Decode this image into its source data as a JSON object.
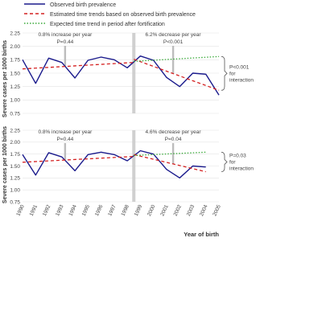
{
  "legend": [
    {
      "label": "Observed birth prevalence",
      "color": "#1a1a8c",
      "style": "solid"
    },
    {
      "label": "Estimated time trends based on observed birth prevalence",
      "color": "#d42020",
      "style": "dashed"
    },
    {
      "label": "Expected time trend in period after fortification",
      "color": "#3aaa3a",
      "style": "dotted"
    }
  ],
  "colors": {
    "observed": "#1a1a8c",
    "trend": "#d42020",
    "expected": "#3aaa3a",
    "divider": "#c8c8c8",
    "annotation_bg": "#d9d9d9",
    "grid": "#e3e3e3"
  },
  "chart_data": [
    {
      "type": "line",
      "ylabel": "Severe cases per 1000 births",
      "xlabel": "",
      "ylim": [
        0.75,
        2.25
      ],
      "yticks": [
        "2.25",
        "2.00",
        "1.75",
        "1.50",
        "1.25",
        "1.00",
        "0.75"
      ],
      "x": [
        1990,
        1991,
        1992,
        1993,
        1994,
        1995,
        1996,
        1997,
        1998,
        1999,
        2000,
        2001,
        2002,
        2003,
        2004,
        2005
      ],
      "divider_x": 1998.5,
      "series": [
        {
          "name": "Observed birth prevalence",
          "kind": "observed",
          "x": [
            1990,
            1991,
            1992,
            1993,
            1994,
            1995,
            1996,
            1997,
            1998,
            1999,
            2000,
            2001,
            2002,
            2003,
            2004,
            2005
          ],
          "values": [
            1.75,
            1.31,
            1.78,
            1.7,
            1.41,
            1.74,
            1.8,
            1.75,
            1.6,
            1.82,
            1.74,
            1.42,
            1.25,
            1.5,
            1.48,
            1.09
          ]
        },
        {
          "name": "Estimated time trends based on observed birth prevalence",
          "kind": "trend",
          "x": [
            1990,
            1998.5
          ],
          "values": [
            1.58,
            1.7
          ]
        },
        {
          "name": "Estimated time trends based on observed birth prevalence",
          "kind": "trend",
          "x": [
            1998.5,
            2005
          ],
          "values": [
            1.76,
            1.18
          ]
        },
        {
          "name": "Expected time trend in period after fortification",
          "kind": "expected",
          "x": [
            1998.5,
            2005
          ],
          "values": [
            1.72,
            1.81
          ]
        }
      ],
      "annotations": [
        {
          "line1": "0.8% increase per year",
          "line2": "P=0.44"
        },
        {
          "line1": "6.2% decrease per year",
          "line2": "P<0.001"
        }
      ],
      "bracket": {
        "line1": "P<0.001",
        "line2": "for",
        "line3": "interaction"
      }
    },
    {
      "type": "line",
      "ylabel": "Severe cases per 1000 births",
      "xlabel": "Year of birth",
      "ylim": [
        0.75,
        2.25
      ],
      "yticks": [
        "2.25",
        "2.00",
        "1.75",
        "1.50",
        "1.25",
        "1.00",
        "0.75"
      ],
      "x": [
        1990,
        1991,
        1992,
        1993,
        1994,
        1995,
        1996,
        1997,
        1998,
        1999,
        2000,
        2001,
        2002,
        2003,
        2004,
        2005
      ],
      "xticks": [
        "1990",
        "1991",
        "1992",
        "1993",
        "1994",
        "1995",
        "1996",
        "1997",
        "1998",
        "1999",
        "2000",
        "2001",
        "2002",
        "2003",
        "2004",
        "2005"
      ],
      "divider_x": 1998.5,
      "series": [
        {
          "name": "Observed birth prevalence",
          "kind": "observed",
          "x": [
            1990,
            1991,
            1992,
            1993,
            1994,
            1995,
            1996,
            1997,
            1998,
            1999,
            2000,
            2001,
            2002,
            2003,
            2004
          ],
          "values": [
            1.74,
            1.31,
            1.78,
            1.69,
            1.4,
            1.74,
            1.79,
            1.74,
            1.61,
            1.82,
            1.75,
            1.43,
            1.25,
            1.5,
            1.48
          ]
        },
        {
          "name": "Estimated time trends based on observed birth prevalence",
          "kind": "trend",
          "x": [
            1990,
            1998.5
          ],
          "values": [
            1.58,
            1.7
          ]
        },
        {
          "name": "Estimated time trends based on observed birth prevalence",
          "kind": "trend",
          "x": [
            1998.5,
            2004
          ],
          "values": [
            1.74,
            1.38
          ]
        },
        {
          "name": "Expected time trend in period after fortification",
          "kind": "expected",
          "x": [
            1998.5,
            2004
          ],
          "values": [
            1.72,
            1.79
          ]
        }
      ],
      "annotations": [
        {
          "line1": "0.8% increase per year",
          "line2": "P=0.44"
        },
        {
          "line1": "4.6% decrease per year",
          "line2": "P=0.04"
        }
      ],
      "bracket": {
        "line1": "P=0.03",
        "line2": "for",
        "line3": "interaction"
      }
    }
  ]
}
